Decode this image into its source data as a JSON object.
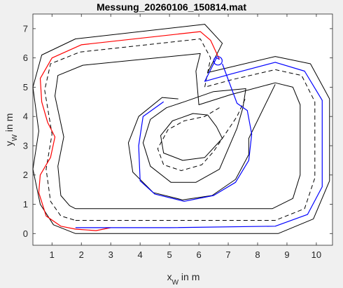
{
  "chart_data": {
    "type": "line",
    "title": "Messung_20260106_150814.mat",
    "xlabel": {
      "main": "x",
      "sub": "W",
      "rest": " in m"
    },
    "ylabel": {
      "main": "y",
      "sub": "W",
      "rest": " in m"
    },
    "xlim": [
      0.35,
      10.55
    ],
    "ylim": [
      -0.4,
      7.5
    ],
    "xticks": [
      "1",
      "2",
      "3",
      "4",
      "5",
      "6",
      "7",
      "8",
      "9",
      "10"
    ],
    "yticks": [
      "0",
      "1",
      "2",
      "3",
      "4",
      "5",
      "6",
      "7"
    ],
    "grid": false,
    "colors": {
      "track": "#000000",
      "red_trace": "#ff0000",
      "blue_trace": "#0000ff",
      "axes_bg": "#ffffff",
      "figure_bg": "#f0f0f0"
    },
    "series": [
      {
        "style": "solid",
        "color": "#000000",
        "points": [
          [
            1.8,
            0
          ],
          [
            8.7,
            0
          ],
          [
            9.9,
            0.5
          ],
          [
            10.45,
            1.8
          ],
          [
            10.45,
            4.6
          ],
          [
            9.8,
            5.8
          ],
          [
            8.6,
            6.05
          ],
          [
            6.3,
            5.5
          ],
          [
            6.8,
            6.5
          ],
          [
            6.2,
            7.15
          ],
          [
            1.8,
            6.65
          ],
          [
            0.65,
            6.1
          ],
          [
            0.35,
            5.0
          ],
          [
            0.55,
            3.5
          ],
          [
            0.35,
            2.2
          ],
          [
            0.6,
            1.0
          ],
          [
            1.05,
            0.3
          ],
          [
            1.8,
            0
          ]
        ]
      },
      {
        "style": "dashed",
        "color": "#000000",
        "points": [
          [
            1.8,
            0.45
          ],
          [
            8.6,
            0.45
          ],
          [
            9.6,
            0.85
          ],
          [
            9.95,
            1.9
          ],
          [
            9.95,
            4.5
          ],
          [
            9.5,
            5.4
          ],
          [
            8.6,
            5.6
          ],
          [
            7.1,
            5.25
          ],
          [
            6.2,
            5.0
          ],
          [
            6.4,
            6.0
          ],
          [
            6.05,
            6.65
          ],
          [
            1.95,
            6.2
          ],
          [
            0.95,
            5.8
          ],
          [
            0.75,
            4.9
          ],
          [
            1.0,
            3.4
          ],
          [
            0.8,
            2.2
          ],
          [
            0.95,
            1.1
          ],
          [
            1.3,
            0.6
          ],
          [
            1.8,
            0.45
          ]
        ]
      },
      {
        "style": "solid",
        "color": "#000000",
        "points": [
          [
            1.8,
            0.85
          ],
          [
            8.5,
            0.85
          ],
          [
            9.2,
            1.2
          ],
          [
            9.45,
            2.0
          ],
          [
            9.45,
            4.4
          ],
          [
            9.2,
            5.0
          ],
          [
            8.6,
            5.15
          ],
          [
            7.1,
            4.75
          ],
          [
            6.0,
            4.4
          ],
          [
            5.9,
            5.55
          ],
          [
            6.05,
            6.15
          ],
          [
            2.05,
            5.75
          ],
          [
            1.2,
            5.4
          ],
          [
            1.1,
            4.7
          ],
          [
            1.4,
            3.3
          ],
          [
            1.2,
            2.3
          ],
          [
            1.3,
            1.3
          ],
          [
            1.6,
            0.95
          ],
          [
            1.8,
            0.85
          ]
        ]
      },
      {
        "style": "solid",
        "color": "#000000",
        "points": [
          [
            5.3,
            4.6
          ],
          [
            4.75,
            4.65
          ],
          [
            3.95,
            4.0
          ],
          [
            3.6,
            3.1
          ],
          [
            3.75,
            2.1
          ],
          [
            4.45,
            1.4
          ],
          [
            5.45,
            1.15
          ],
          [
            6.45,
            1.3
          ],
          [
            7.25,
            1.85
          ],
          [
            7.7,
            2.7
          ],
          [
            7.7,
            3.25
          ],
          [
            8.6,
            5.1
          ]
        ]
      },
      {
        "style": "solid",
        "color": "#000000",
        "points": [
          [
            6.5,
            4.85
          ],
          [
            7.6,
            4.95
          ],
          [
            7.5,
            4.3
          ],
          [
            7.3,
            3.6
          ],
          [
            6.7,
            2.2
          ],
          [
            5.9,
            1.75
          ],
          [
            5.05,
            1.75
          ],
          [
            4.35,
            2.3
          ],
          [
            4.1,
            3.1
          ],
          [
            4.35,
            3.9
          ],
          [
            4.9,
            4.3
          ],
          [
            5.5,
            4.5
          ],
          [
            6.5,
            4.85
          ]
        ]
      },
      {
        "style": "dashed",
        "color": "#000000",
        "points": [
          [
            6.7,
            4.3
          ],
          [
            6.2,
            4.0
          ],
          [
            5.5,
            3.85
          ],
          [
            4.95,
            3.55
          ],
          [
            4.6,
            2.9
          ],
          [
            4.8,
            2.35
          ],
          [
            5.4,
            2.15
          ],
          [
            6.1,
            2.35
          ],
          [
            6.5,
            2.8
          ],
          [
            6.9,
            3.4
          ],
          [
            7.3,
            4.0
          ],
          [
            7.6,
            4.65
          ]
        ]
      },
      {
        "style": "solid",
        "color": "#000000",
        "points": [
          [
            6.8,
            3.25
          ],
          [
            6.2,
            2.6
          ],
          [
            5.45,
            2.5
          ],
          [
            4.8,
            2.75
          ],
          [
            4.7,
            3.35
          ],
          [
            5.1,
            3.85
          ],
          [
            5.8,
            4.1
          ],
          [
            6.3,
            4.05
          ],
          [
            6.6,
            3.65
          ],
          [
            6.8,
            3.25
          ]
        ]
      },
      {
        "style": "solid",
        "color": "#ff0000",
        "points": [
          [
            6.7,
            5.95
          ],
          [
            6.4,
            6.6
          ],
          [
            6.05,
            6.9
          ],
          [
            2.0,
            6.45
          ],
          [
            1.0,
            6.0
          ],
          [
            0.6,
            5.3
          ],
          [
            0.65,
            4.5
          ],
          [
            0.85,
            3.8
          ],
          [
            1.1,
            3.3
          ],
          [
            0.95,
            2.6
          ],
          [
            0.6,
            2.0
          ],
          [
            0.55,
            1.4
          ],
          [
            0.8,
            0.6
          ],
          [
            1.3,
            0.25
          ],
          [
            1.8,
            0.15
          ],
          [
            2.5,
            0.1
          ],
          [
            3.0,
            0.2
          ]
        ]
      },
      {
        "style": "solid",
        "color": "#0000ff",
        "points": [
          [
            1.8,
            0.2
          ],
          [
            3.0,
            0.2
          ],
          [
            5.0,
            0.2
          ],
          [
            8.6,
            0.25
          ],
          [
            9.7,
            0.65
          ],
          [
            10.2,
            1.6
          ],
          [
            10.2,
            4.55
          ],
          [
            9.6,
            5.55
          ],
          [
            8.6,
            5.85
          ],
          [
            7.1,
            5.45
          ],
          [
            6.2,
            5.2
          ],
          [
            6.6,
            6.0
          ],
          [
            6.7,
            5.95
          ]
        ]
      },
      {
        "style": "solid",
        "color": "#0000ff",
        "points": [
          [
            6.8,
            5.8
          ],
          [
            7.3,
            4.45
          ],
          [
            7.65,
            4.2
          ],
          [
            7.8,
            3.4
          ],
          [
            7.7,
            2.5
          ],
          [
            7.25,
            1.75
          ],
          [
            6.5,
            1.3
          ],
          [
            5.5,
            1.1
          ],
          [
            4.5,
            1.35
          ],
          [
            4.0,
            1.8
          ],
          [
            3.95,
            3.0
          ],
          [
            4.1,
            4.0
          ],
          [
            4.8,
            4.5
          ]
        ]
      }
    ],
    "marker": {
      "shape": "circle",
      "x": 6.65,
      "y": 5.9,
      "color": "#0000ff"
    }
  }
}
